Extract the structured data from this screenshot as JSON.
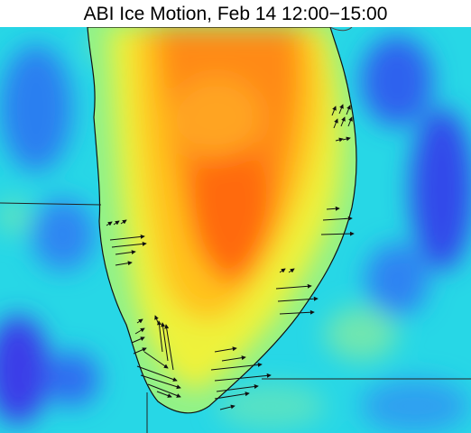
{
  "title": "ABI Ice Motion, Feb 14 12:00−15:00"
}
